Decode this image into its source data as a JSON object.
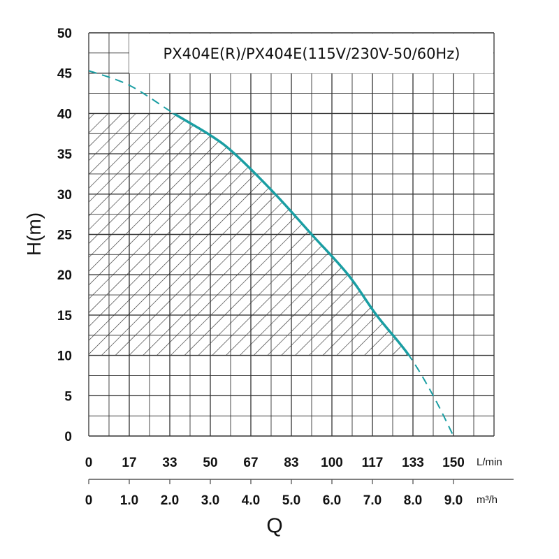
{
  "chart_data": {
    "type": "line",
    "title": "PX404E(R)/PX404E(115V/230V-50/60Hz)",
    "ylabel": "H(m)",
    "xlabel": "Q",
    "ylim": [
      0,
      50
    ],
    "xlim": [
      0,
      10
    ],
    "grid": true,
    "y_ticks": [
      "0",
      "5",
      "10",
      "15",
      "20",
      "25",
      "30",
      "35",
      "40",
      "45",
      "50"
    ],
    "x_ticks_lmin": [
      "0",
      "17",
      "33",
      "50",
      "67",
      "83",
      "100",
      "117",
      "133",
      "150"
    ],
    "x_unit_lmin": "L/min",
    "x_ticks_m3h": [
      "0",
      "1.0",
      "2.0",
      "3.0",
      "4.0",
      "5.0",
      "6.0",
      "7.0",
      "8.0",
      "9.0"
    ],
    "x_unit_m3h": "m³/h",
    "series": [
      {
        "name": "PX404E curve",
        "color": "#1a9ea3",
        "x": [
          0,
          1.0,
          2.1,
          3.0,
          3.6,
          4.6,
          5.5,
          6.4,
          7.1,
          7.9,
          8.5,
          9.0
        ],
        "y": [
          45.3,
          43.5,
          40,
          37.3,
          35,
          30,
          25,
          20,
          15,
          10,
          5,
          0
        ],
        "solid_range_y": [
          10,
          40
        ]
      }
    ],
    "hatched_region": {
      "x_from": 0,
      "y_from": 10,
      "y_to": 40,
      "bounded_by": "curve"
    }
  }
}
